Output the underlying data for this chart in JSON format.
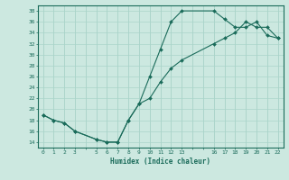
{
  "xlabel": "Humidex (Indice chaleur)",
  "bg_color": "#cce8e0",
  "grid_color": "#aad4ca",
  "line_color": "#1a6b5a",
  "xlim": [
    -0.5,
    22.5
  ],
  "ylim": [
    13,
    39
  ],
  "yticks": [
    14,
    16,
    18,
    20,
    22,
    24,
    26,
    28,
    30,
    32,
    34,
    36,
    38
  ],
  "xticks": [
    0,
    1,
    2,
    3,
    5,
    6,
    7,
    8,
    9,
    10,
    11,
    12,
    13,
    16,
    17,
    18,
    19,
    20,
    21,
    22
  ],
  "line1_x": [
    0,
    1,
    2,
    3,
    5,
    6,
    7,
    8,
    9,
    10,
    11,
    12,
    13,
    16,
    17,
    18,
    19,
    20,
    21,
    22
  ],
  "line1_y": [
    19,
    18,
    17.5,
    16,
    14.5,
    14,
    14,
    18,
    21,
    26,
    31,
    36,
    38,
    38,
    36.5,
    35,
    35,
    36,
    33.5,
    33
  ],
  "line2_x": [
    0,
    1,
    2,
    3,
    5,
    6,
    7,
    8,
    9,
    10,
    11,
    12,
    13,
    16,
    17,
    18,
    19,
    20,
    21,
    22
  ],
  "line2_y": [
    19,
    18,
    17.5,
    16,
    14.5,
    14,
    14,
    18,
    21,
    22,
    25,
    27.5,
    29,
    32,
    33,
    34,
    36,
    35,
    35,
    33
  ]
}
